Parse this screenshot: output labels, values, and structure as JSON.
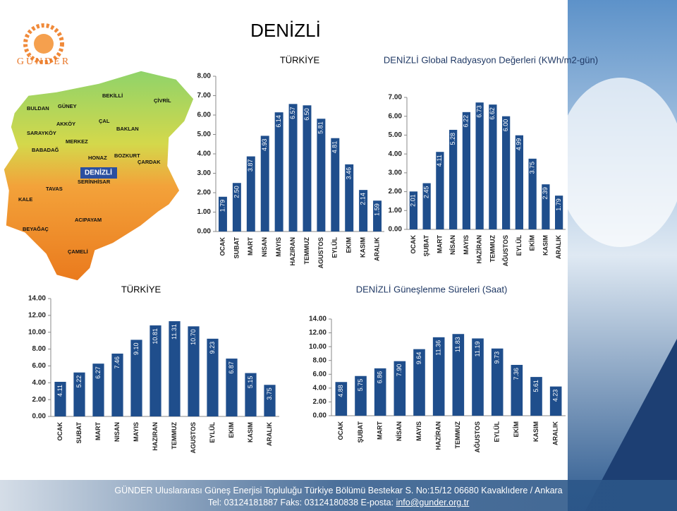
{
  "header": {
    "title": "DENİZLİ",
    "logo": "GÜNDER"
  },
  "map": {
    "labels": [
      "BULDAN",
      "GÜNEY",
      "BEKİLLİ",
      "ÇİVRİL",
      "SARAYKÖY",
      "AKKÖY",
      "ÇAL",
      "BAKLAN",
      "MERKEZ",
      "BABADAĞ",
      "HONAZ",
      "BOZKURT",
      "ÇARDAK",
      "DENİZLİ",
      "SERİNHİSAR",
      "TAVAS",
      "KALE",
      "ACIPAYAM",
      "BEYAĞAÇ",
      "ÇAMELİ"
    ]
  },
  "chart_data": [
    {
      "type": "bar",
      "title": "TÜRKİYE",
      "color": "#1f4e8c",
      "grid": false,
      "categories": [
        "OCAK",
        "SUBAT",
        "MART",
        "NISAN",
        "MAYIS",
        "HAZIRAN",
        "TEMMUZ",
        "AGUSTOS",
        "EYLÜL",
        "EKIM",
        "KASIM",
        "ARALIK"
      ],
      "values": [
        1.79,
        2.5,
        3.87,
        4.93,
        6.14,
        6.57,
        6.5,
        5.81,
        4.81,
        3.46,
        2.14,
        1.59
      ],
      "value_labels": [
        "1.79",
        "2.50",
        "3.87",
        "4.93",
        "6.14",
        "6.57",
        "6.50",
        "5.81",
        "4.81",
        "3.46",
        "2.14",
        "1.59"
      ],
      "ylim": [
        0,
        8
      ],
      "yticks": [
        {
          "value": 0,
          "label": "0.00"
        },
        {
          "value": 1,
          "label": "1.00"
        },
        {
          "value": 2,
          "label": "2.00"
        },
        {
          "value": 3,
          "label": "3.00"
        },
        {
          "value": 4,
          "label": "4.00"
        },
        {
          "value": 5,
          "label": "5.00"
        },
        {
          "value": 6,
          "label": "6.00"
        },
        {
          "value": 7,
          "label": "7.00"
        },
        {
          "value": 8,
          "label": "8.00"
        }
      ]
    },
    {
      "type": "bar",
      "title": "DENİZLİ Global Radyasyon Değerleri (KWh/m2-gün)",
      "color": "#1f4e8c",
      "grid": false,
      "categories": [
        "OCAK",
        "ŞUBAT",
        "MART",
        "NİSAN",
        "MAYIS",
        "HAZİRAN",
        "TEMMUZ",
        "AĞUSTOS",
        "EYLÜL",
        "EKİM",
        "KASIM",
        "ARALIK"
      ],
      "values": [
        2.01,
        2.45,
        4.11,
        5.28,
        6.22,
        6.73,
        6.62,
        6,
        4.99,
        3.75,
        2.39,
        1.79
      ],
      "value_labels": [
        "2.01",
        "2.45",
        "4.11",
        "5.28",
        "6.22",
        "6.73",
        "6.62",
        "6.00",
        "4.99",
        "3.75",
        "2.39",
        "1.79"
      ],
      "ylim": [
        0,
        7
      ],
      "yticks": [
        {
          "value": 0,
          "label": "0.00"
        },
        {
          "value": 1,
          "label": "1.00"
        },
        {
          "value": 2,
          "label": "2.00"
        },
        {
          "value": 3,
          "label": "3.00"
        },
        {
          "value": 4,
          "label": "4.00"
        },
        {
          "value": 5,
          "label": "5.00"
        },
        {
          "value": 6,
          "label": "6.00"
        },
        {
          "value": 7,
          "label": "7.00"
        }
      ]
    },
    {
      "type": "bar",
      "title": "TÜRKİYE",
      "color": "#1f4e8c",
      "grid": false,
      "categories": [
        "OCAK",
        "SUBAT",
        "MART",
        "NISAN",
        "MAYIS",
        "HAZIRAN",
        "TEMMUZ",
        "AGUSTOS",
        "EYLÜL",
        "EKIM",
        "KASIM",
        "ARALIK"
      ],
      "values": [
        4.11,
        5.22,
        6.27,
        7.46,
        9.1,
        10.81,
        11.31,
        10.7,
        9.23,
        6.87,
        5.15,
        3.75
      ],
      "value_labels": [
        "4.11",
        "5.22",
        "6.27",
        "7.46",
        "9.10",
        "10.81",
        "11.31",
        "10.70",
        "9.23",
        "6.87",
        "5.15",
        "3.75"
      ],
      "ylim": [
        0,
        14
      ],
      "yticks": [
        {
          "value": 0,
          "label": "0.00"
        },
        {
          "value": 2,
          "label": "2.00"
        },
        {
          "value": 4,
          "label": "4.00"
        },
        {
          "value": 6,
          "label": "6.00"
        },
        {
          "value": 8,
          "label": "8.00"
        },
        {
          "value": 10,
          "label": "10.00"
        },
        {
          "value": 12,
          "label": "12.00"
        },
        {
          "value": 14,
          "label": "14.00"
        }
      ]
    },
    {
      "type": "bar",
      "title": "DENİZLİ Güneşlenme Süreleri (Saat)",
      "color": "#1f4e8c",
      "grid": false,
      "categories": [
        "OCAK",
        "ŞUBAT",
        "MART",
        "NİSAN",
        "MAYIS",
        "HAZİRAN",
        "TEMMUZ",
        "AĞUSTOS",
        "EYLÜL",
        "EKİM",
        "KASIM",
        "ARALIK"
      ],
      "values": [
        4.88,
        5.75,
        6.86,
        7.9,
        9.64,
        11.36,
        11.83,
        11.19,
        9.73,
        7.36,
        5.61,
        4.23
      ],
      "value_labels": [
        "4.88",
        "5.75",
        "6.86",
        "7.90",
        "9.64",
        "11.36",
        "11.83",
        "11.19",
        "9.73",
        "7.36",
        "5.61",
        "4.23"
      ],
      "ylim": [
        0,
        14
      ],
      "yticks": [
        {
          "value": 0,
          "label": "0.00"
        },
        {
          "value": 2,
          "label": "2.00"
        },
        {
          "value": 4,
          "label": "4.00"
        },
        {
          "value": 6,
          "label": "6.00"
        },
        {
          "value": 8,
          "label": "8.00"
        },
        {
          "value": 10,
          "label": "10.00"
        },
        {
          "value": 12,
          "label": "12.00"
        },
        {
          "value": 14,
          "label": "14.00"
        }
      ]
    }
  ],
  "footer": {
    "line1": "GÜNDER  Uluslararası Güneş Enerjisi Topluluğu Türkiye Bölümü  Bestekar S. No:15/12 06680 Kavaklıdere / Ankara",
    "line2": "Tel: 03124181887  Faks: 03124180838  E-posta: ",
    "email": "info@gunder.org.tr"
  }
}
